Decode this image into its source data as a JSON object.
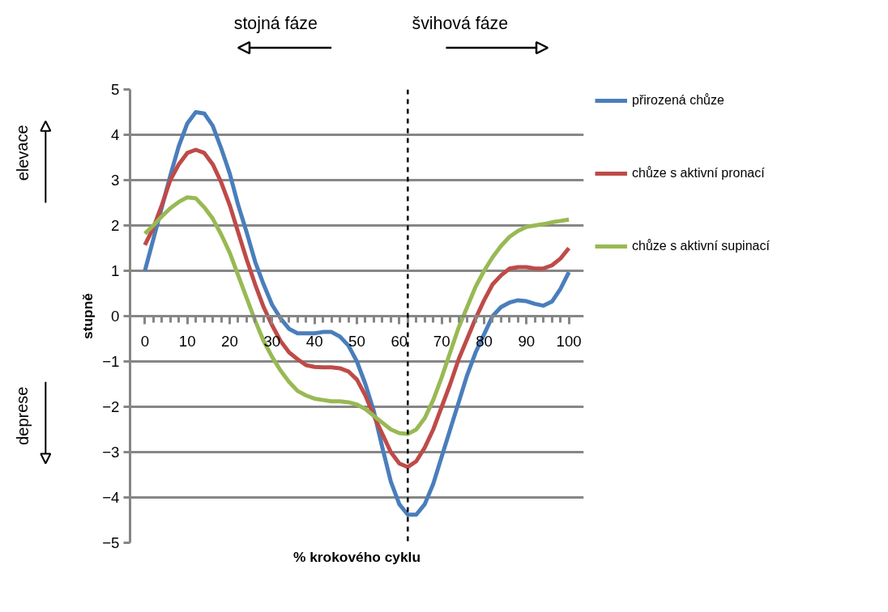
{
  "chart_data": {
    "type": "line",
    "xlabel": "% krokového cyklu",
    "ylabel": "stupně",
    "x": [
      0,
      2,
      4,
      6,
      8,
      10,
      12,
      14,
      16,
      18,
      20,
      22,
      24,
      26,
      28,
      30,
      32,
      34,
      36,
      38,
      40,
      42,
      44,
      46,
      48,
      50,
      52,
      54,
      56,
      58,
      60,
      62,
      64,
      66,
      68,
      70,
      72,
      74,
      76,
      78,
      80,
      82,
      84,
      86,
      88,
      90,
      92,
      94,
      96,
      98,
      100
    ],
    "series": [
      {
        "name": "přirozená chůze",
        "color": "#4a7ebb",
        "values": [
          1.0,
          1.7,
          2.4,
          3.1,
          3.75,
          4.25,
          4.5,
          4.47,
          4.2,
          3.7,
          3.15,
          2.45,
          1.85,
          1.2,
          0.7,
          0.25,
          -0.05,
          -0.28,
          -0.38,
          -0.38,
          -0.38,
          -0.35,
          -0.35,
          -0.45,
          -0.65,
          -1.0,
          -1.5,
          -2.1,
          -2.9,
          -3.65,
          -4.15,
          -4.38,
          -4.38,
          -4.15,
          -3.7,
          -3.1,
          -2.5,
          -1.9,
          -1.3,
          -0.8,
          -0.4,
          0.0,
          0.2,
          0.3,
          0.35,
          0.33,
          0.27,
          0.23,
          0.32,
          0.6,
          0.97
        ]
      },
      {
        "name": "chůze s aktivní pronací",
        "color": "#be4b48",
        "values": [
          1.57,
          1.95,
          2.45,
          3.0,
          3.35,
          3.6,
          3.67,
          3.6,
          3.35,
          2.95,
          2.45,
          1.85,
          1.25,
          0.7,
          0.2,
          -0.2,
          -0.55,
          -0.8,
          -0.95,
          -1.08,
          -1.12,
          -1.13,
          -1.13,
          -1.15,
          -1.22,
          -1.4,
          -1.75,
          -2.2,
          -2.6,
          -3.0,
          -3.25,
          -3.33,
          -3.2,
          -2.9,
          -2.5,
          -2.0,
          -1.5,
          -0.95,
          -0.5,
          -0.05,
          0.35,
          0.7,
          0.9,
          1.05,
          1.08,
          1.08,
          1.05,
          1.05,
          1.12,
          1.27,
          1.5
        ]
      },
      {
        "name": "chůze s aktivní supinací",
        "color": "#98b954",
        "values": [
          1.82,
          2.0,
          2.2,
          2.38,
          2.52,
          2.62,
          2.6,
          2.4,
          2.15,
          1.8,
          1.4,
          0.9,
          0.4,
          -0.1,
          -0.55,
          -0.9,
          -1.2,
          -1.45,
          -1.65,
          -1.75,
          -1.82,
          -1.85,
          -1.88,
          -1.88,
          -1.9,
          -1.95,
          -2.05,
          -2.2,
          -2.35,
          -2.5,
          -2.58,
          -2.6,
          -2.5,
          -2.25,
          -1.85,
          -1.35,
          -0.8,
          -0.25,
          0.2,
          0.65,
          1.0,
          1.3,
          1.55,
          1.75,
          1.88,
          1.97,
          2.0,
          2.03,
          2.07,
          2.1,
          2.13
        ]
      }
    ],
    "xlim": [
      0,
      100
    ],
    "xticks": [
      0,
      10,
      20,
      30,
      40,
      50,
      60,
      70,
      80,
      90,
      100
    ],
    "ylim": [
      -5,
      5
    ],
    "yticks": [
      -5,
      -4,
      -3,
      -2,
      -1,
      0,
      1,
      2,
      3,
      4,
      5
    ],
    "ref_lines": [
      {
        "axis": "x",
        "value": 62,
        "color": "#000000",
        "line_style": "dashed"
      }
    ],
    "annotations": [
      "stojná fáze",
      "švihová fáze",
      "elevace",
      "deprese"
    ],
    "grid": "y",
    "legend": "right",
    "marker": "none",
    "line_style": "solid"
  }
}
